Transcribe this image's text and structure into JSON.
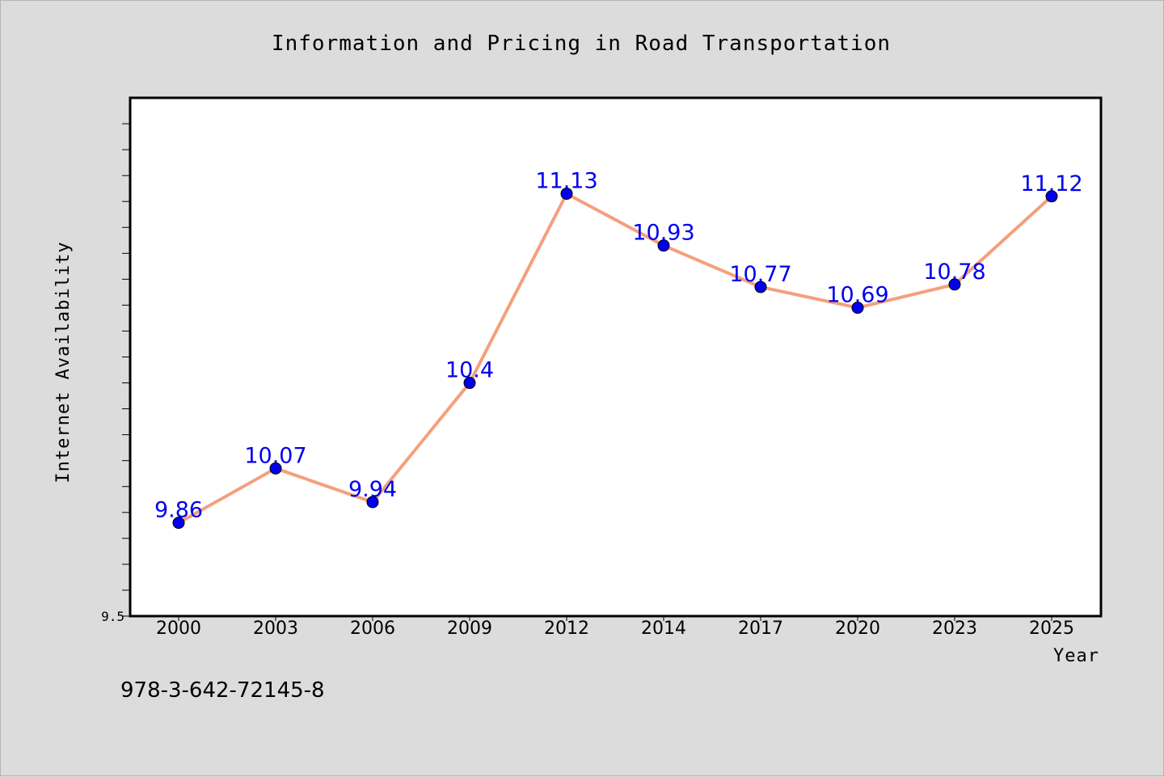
{
  "chart_data": {
    "type": "line",
    "title": "Information and Pricing in Road Transportation",
    "xlabel": "Year",
    "ylabel": "Internet Availability",
    "categories": [
      "2000",
      "2003",
      "2006",
      "2009",
      "2012",
      "2014",
      "2017",
      "2020",
      "2023",
      "2025"
    ],
    "series": [
      {
        "values": [
          9.86,
          10.07,
          9.94,
          10.4,
          11.13,
          10.93,
          10.77,
          10.69,
          10.78,
          11.12
        ]
      }
    ],
    "data_labels": [
      "9.86",
      "10.07",
      "9.94",
      "10.4",
      "11.13",
      "10.93",
      "10.77",
      "10.69",
      "10.78",
      "11.12"
    ],
    "y_tick_labels": [
      "9.5"
    ],
    "ylim": [
      9.5,
      11.5
    ],
    "grid": false,
    "line_color": "#f4a07c",
    "marker_color": "#0000ee",
    "label_color": "#0000ee",
    "plot_background": "#ffffff",
    "page_background": "#dcdcdc"
  },
  "footer": {
    "isbn": "978-3-642-72145-8"
  }
}
